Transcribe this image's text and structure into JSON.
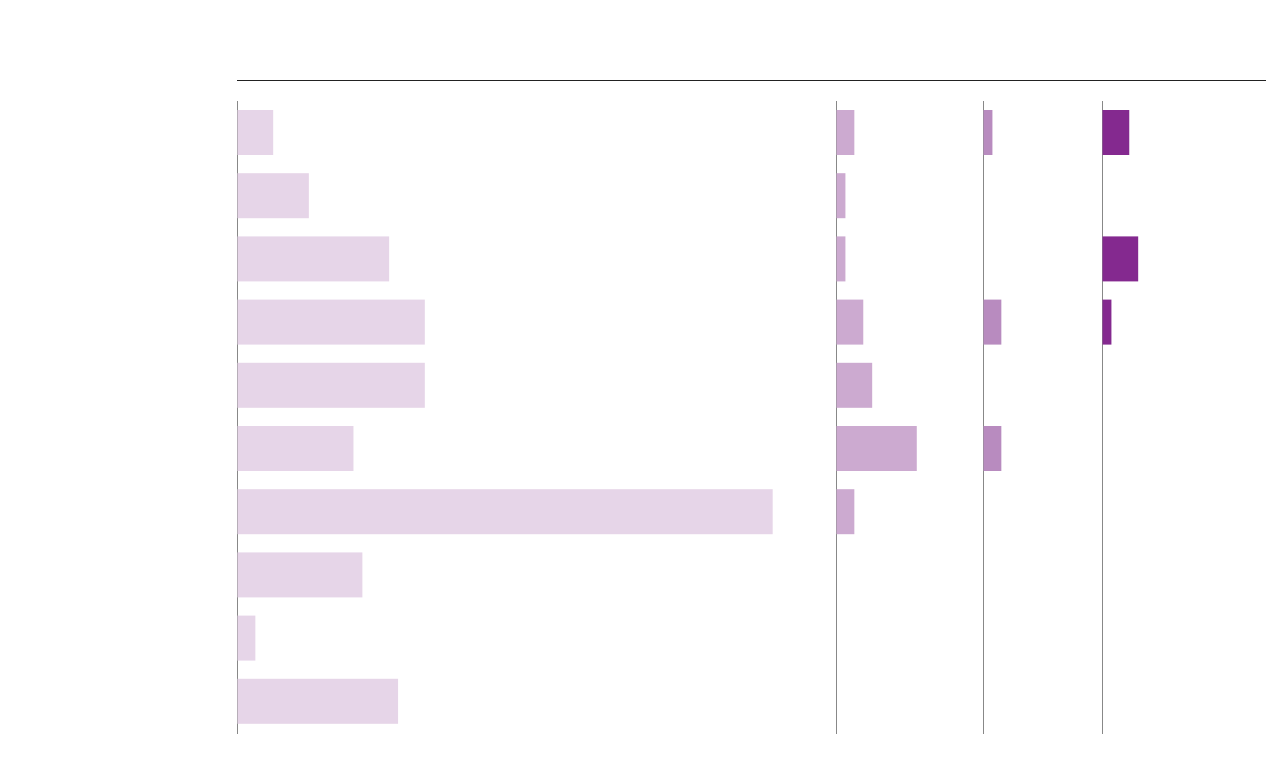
{
  "chart_data": {
    "type": "bar",
    "orientation": "horizontal",
    "layout": "small-multiples",
    "grid": false,
    "legend": "none",
    "row_count": 10,
    "colors": [
      "#e6d5e8",
      "#ccaad0",
      "#b88bbf",
      "#84298f"
    ],
    "panels": [
      {
        "values": [
          4,
          8,
          17,
          21,
          21,
          13,
          60,
          14,
          2,
          18
        ]
      },
      {
        "values": [
          2,
          1,
          1,
          3,
          4,
          9,
          2,
          0,
          0,
          0
        ]
      },
      {
        "values": [
          1,
          0,
          0,
          2,
          0,
          2,
          0,
          0,
          0,
          0
        ]
      },
      {
        "values": [
          3,
          0,
          4,
          1,
          0,
          0,
          0,
          0,
          0,
          0
        ]
      }
    ]
  }
}
